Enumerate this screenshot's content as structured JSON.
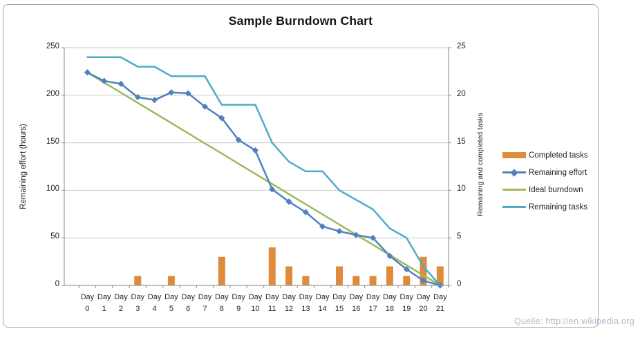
{
  "title": "Sample Burndown Chart",
  "source_note": "Quelle: http://en.wikipedia.org",
  "colors": {
    "bar_orange": "#E08A3C",
    "effort_blue": "#4F81BD",
    "ideal_green": "#9BBB59",
    "tasks_teal": "#4BACC6",
    "gridline": "#C9C9C9",
    "axis_line": "#9B9B9B",
    "chart_border": "#A8A8A8",
    "text": "#262626",
    "source_note_text": "#B6B6CA"
  },
  "legend": {
    "items": [
      {
        "label": "Completed tasks",
        "swatch": "bar",
        "color": "#E08A3C"
      },
      {
        "label": "Remaining effort",
        "swatch": "line-diamond",
        "color": "#4F81BD"
      },
      {
        "label": "Ideal burndown",
        "swatch": "line",
        "color": "#9BBB59"
      },
      {
        "label": "Remaining tasks",
        "swatch": "line",
        "color": "#4BACC6"
      }
    ]
  },
  "chart_data": {
    "type": "combo",
    "title": "Sample Burndown Chart",
    "x_categories": [
      "Day 0",
      "Day 1",
      "Day 2",
      "Day 3",
      "Day 4",
      "Day 5",
      "Day 6",
      "Day 7",
      "Day 8",
      "Day 9",
      "Day 10",
      "Day 11",
      "Day 12",
      "Day 13",
      "Day 14",
      "Day 15",
      "Day 16",
      "Day 17",
      "Day 18",
      "Day 19",
      "Day 20",
      "Day 21"
    ],
    "left_axis": {
      "label": "Remaining effort (hours)",
      "min": 0,
      "max": 250,
      "ticks": [
        0,
        50,
        100,
        150,
        200,
        250
      ]
    },
    "right_axis": {
      "label": "Remaining and  completed tasks",
      "min": 0,
      "max": 25,
      "ticks": [
        0,
        5,
        10,
        15,
        20,
        25
      ]
    },
    "grid": "horizontal",
    "legend_position": "right",
    "series": [
      {
        "name": "Completed tasks",
        "chart_type": "bar",
        "axis": "right",
        "color": "#E08A3C",
        "values": [
          0,
          0,
          0,
          1,
          0,
          1,
          0,
          0,
          3,
          0,
          0,
          4,
          2,
          1,
          0,
          2,
          1,
          1,
          2,
          1,
          3,
          2
        ]
      },
      {
        "name": "Remaining effort",
        "chart_type": "line",
        "marker": "diamond",
        "axis": "left",
        "color": "#4F81BD",
        "values": [
          224,
          215,
          212,
          198,
          195,
          203,
          202,
          188,
          176,
          153,
          142,
          101,
          88,
          77,
          62,
          57,
          53,
          50,
          31,
          17,
          5,
          0
        ]
      },
      {
        "name": "Ideal burndown",
        "chart_type": "line",
        "axis": "left",
        "color": "#9BBB59",
        "values": [
          224,
          213.3,
          202.7,
          192,
          181.3,
          170.7,
          160,
          149.3,
          138.7,
          128,
          117.3,
          106.7,
          96,
          85.3,
          74.7,
          64,
          53.3,
          42.7,
          32,
          21.3,
          10.7,
          0
        ]
      },
      {
        "name": "Remaining tasks",
        "chart_type": "line",
        "axis": "right",
        "color": "#4BACC6",
        "values": [
          24,
          24,
          24,
          23,
          23,
          22,
          22,
          22,
          19,
          19,
          19,
          15,
          13,
          12,
          12,
          10,
          9,
          8,
          6,
          5,
          2,
          0
        ]
      }
    ]
  }
}
